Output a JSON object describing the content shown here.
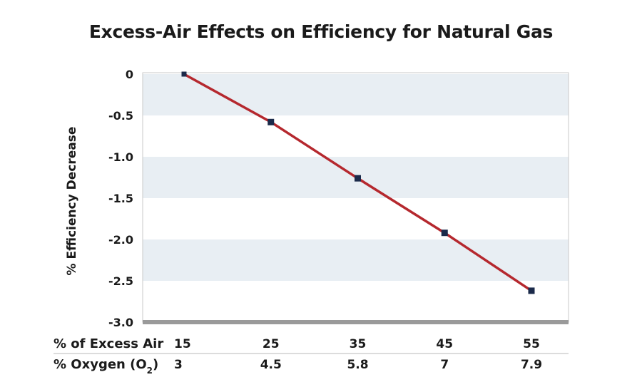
{
  "chart_data": {
    "type": "line",
    "title": "Excess-Air Effects on Efficiency for Natural Gas",
    "ylabel": "% Efficiency Decrease",
    "ylim": [
      -3.0,
      0
    ],
    "yticks": [
      "0",
      "-0.5",
      "-1.0",
      "-1.5",
      "-2.0",
      "-2.5",
      "-3.0"
    ],
    "ytick_values": [
      0,
      -0.5,
      -1.0,
      -1.5,
      -2.0,
      -2.5,
      -3.0
    ],
    "x": [
      15,
      25,
      35,
      45,
      55
    ],
    "y": [
      0,
      -0.58,
      -1.26,
      -1.92,
      -2.62
    ],
    "grid": "alternating horizontal bands",
    "x_rows": [
      {
        "label": "% of Excess Air",
        "values": [
          "15",
          "25",
          "35",
          "45",
          "55"
        ]
      },
      {
        "label_main": "% Oxygen (O",
        "label_sub": "2",
        "label_end": ")",
        "values": [
          "3",
          "4.5",
          "5.8",
          "7",
          "7.9"
        ]
      }
    ],
    "colors": {
      "line": "#b5282e",
      "marker": "#1b2a4a",
      "band": "#e8eef3",
      "baseline": "#9a9a9a",
      "frame": "#c8c8c8"
    }
  }
}
